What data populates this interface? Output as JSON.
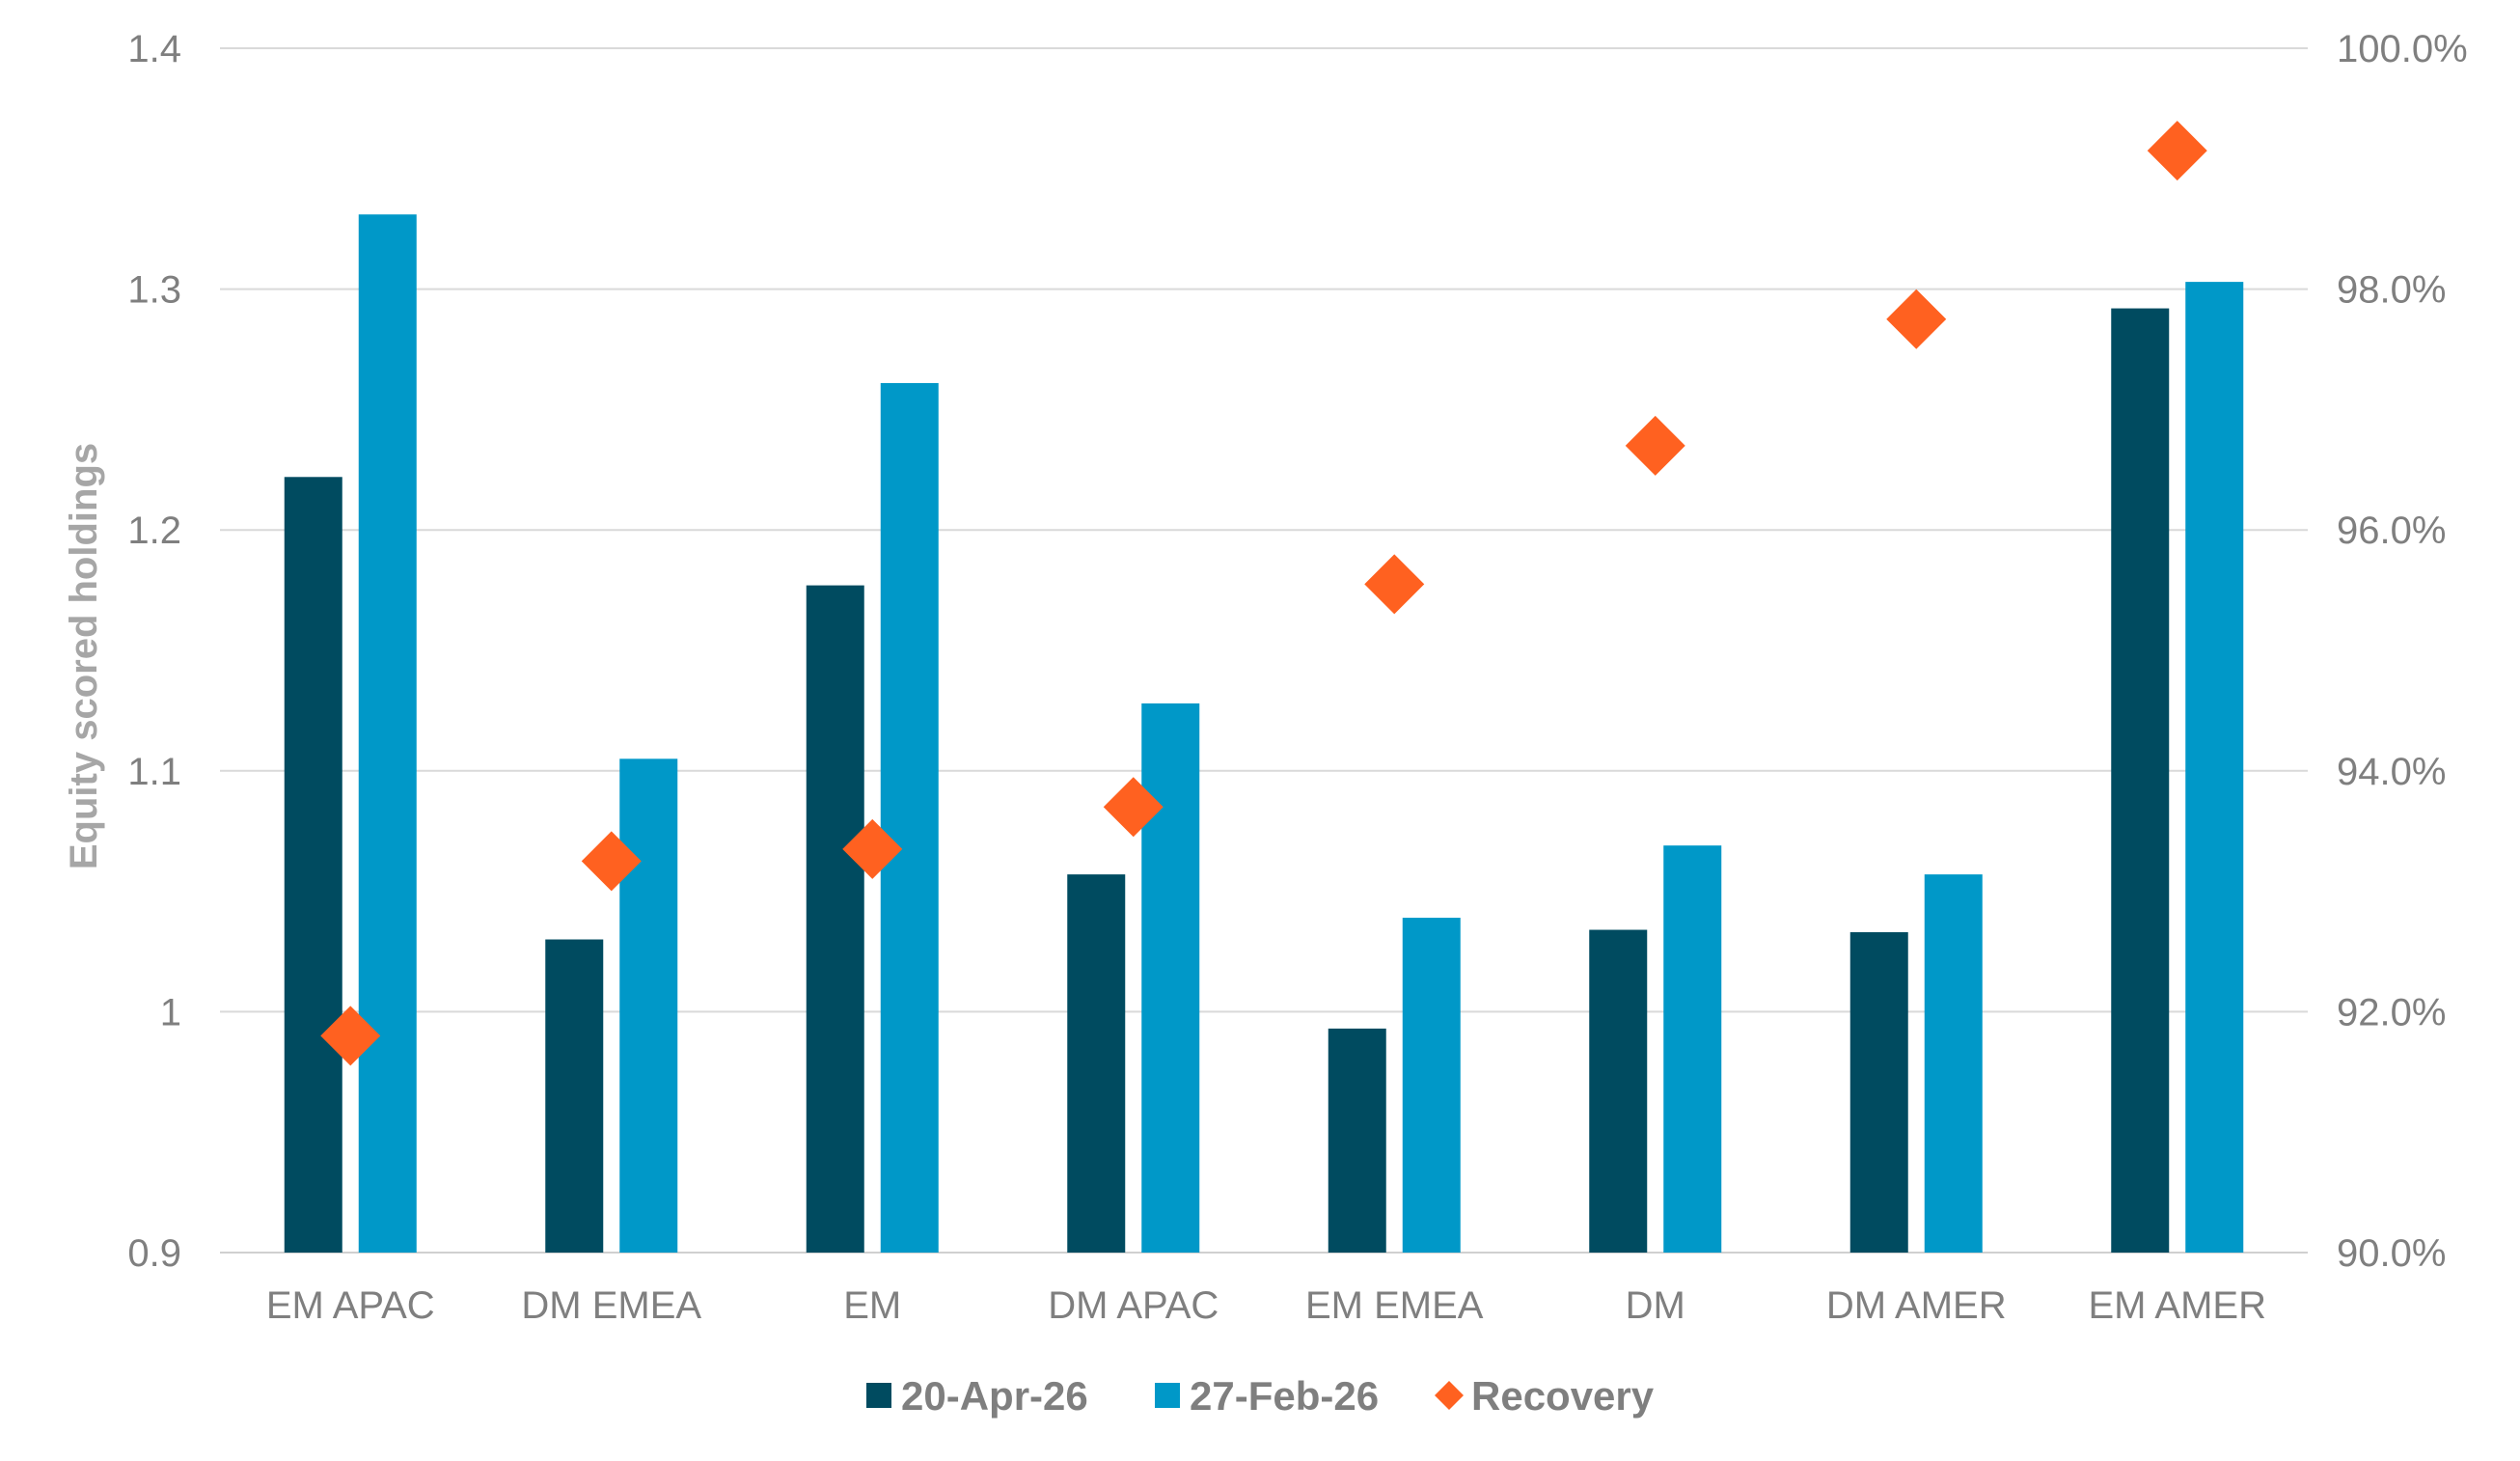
{
  "chart_data": {
    "type": "bar",
    "categories": [
      "EM APAC",
      "DM EMEA",
      "EM",
      "DM APAC",
      "EM EMEA",
      "DM",
      "DM AMER",
      "EM AMER"
    ],
    "series": [
      {
        "name": "20-Apr-26",
        "kind": "bar",
        "axis": "left",
        "color": "#004b60",
        "values": [
          1.222,
          1.03,
          1.177,
          1.057,
          0.993,
          1.034,
          1.033,
          1.292
        ]
      },
      {
        "name": "27-Feb-26",
        "kind": "bar",
        "axis": "left",
        "color": "#0098c8",
        "values": [
          1.331,
          1.105,
          1.261,
          1.128,
          1.039,
          1.069,
          1.057,
          1.303
        ]
      },
      {
        "name": "Recovery",
        "kind": "marker",
        "marker": "diamond",
        "axis": "right",
        "color": "#ff6120",
        "values": [
          91.8,
          93.25,
          93.35,
          93.7,
          95.55,
          96.7,
          97.75,
          99.15
        ]
      }
    ],
    "ylabel": "Equity scored holdings",
    "ylim": [
      0.9,
      1.4
    ],
    "yticks": [
      "0.9",
      "1",
      "1.1",
      "1.2",
      "1.3",
      "1.4"
    ],
    "y2lim": [
      90.0,
      100.0
    ],
    "y2ticks": [
      "90.0%",
      "92.0%",
      "94.0%",
      "96.0%",
      "98.0%",
      "100.0%"
    ],
    "grid": true,
    "legend_position": "bottom"
  }
}
